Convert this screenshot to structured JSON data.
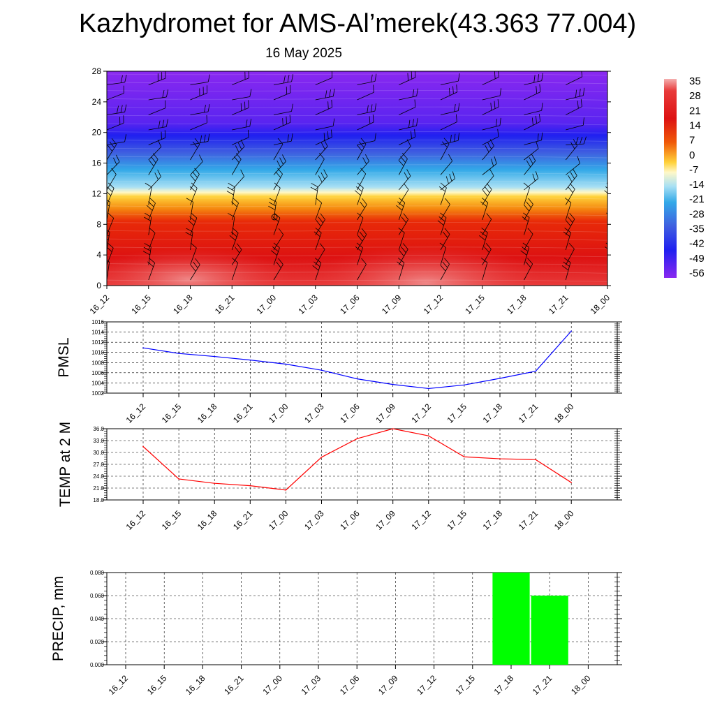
{
  "header": {
    "title": "Kazhydromet for AMS-Al’merek(43.363 77.004)",
    "subtitle": "16 May 2025"
  },
  "colors": {
    "pmsl_line": "#0000ff",
    "temp_line": "#ff0000",
    "precip_bar": "#00ff00"
  },
  "chart_data": [
    {
      "type": "heatmap",
      "title": "",
      "xlabel": "",
      "ylabel": "",
      "x_ticks": [
        "16_12",
        "16_15",
        "16_18",
        "16_21",
        "17_00",
        "17_03",
        "17_06",
        "17_09",
        "17_12",
        "17_15",
        "17_18",
        "17_21",
        "18_00"
      ],
      "y_ticks": [
        "0",
        "4",
        "8",
        "12",
        "16",
        "20",
        "24",
        "28"
      ],
      "ylim": [
        0,
        28
      ],
      "colorbar": {
        "labels": [
          "35",
          "28",
          "21",
          "14",
          "7",
          "0",
          "-7",
          "-14",
          "-21",
          "-28",
          "-35",
          "-42",
          "-49",
          "-56"
        ],
        "range": [
          -60,
          38
        ]
      },
      "overlay": "wind barbs"
    },
    {
      "type": "line",
      "ylabel": "PMSL",
      "categories": [
        "16_12",
        "16_15",
        "16_18",
        "16_21",
        "17_00",
        "17_03",
        "17_06",
        "17_09",
        "17_12",
        "17_15",
        "17_18",
        "17_21",
        "18_00"
      ],
      "values": [
        1010.9,
        1009.8,
        1009.2,
        1008.5,
        1007.7,
        1006.5,
        1004.8,
        1003.7,
        1002.9,
        1003.6,
        1004.9,
        1006.3,
        1014.2
      ],
      "ylim": [
        1002,
        1016
      ],
      "y_ticks": [
        "1002",
        "1004",
        "1006",
        "1008",
        "1010",
        "1012",
        "1014",
        "1016"
      ],
      "grid": true
    },
    {
      "type": "line",
      "ylabel": "TEMP at 2 M",
      "categories": [
        "16_12",
        "16_15",
        "16_18",
        "16_21",
        "17_00",
        "17_03",
        "17_06",
        "17_09",
        "17_12",
        "17_15",
        "17_18",
        "17_21",
        "18_00"
      ],
      "values": [
        31.5,
        23.3,
        22.2,
        21.6,
        20.5,
        28.8,
        33.5,
        36.0,
        34.2,
        28.9,
        28.4,
        28.2,
        22.4
      ],
      "ylim": [
        18,
        36
      ],
      "y_ticks": [
        "18.0",
        "21.0",
        "24.0",
        "27.0",
        "30.0",
        "33.0",
        "36.0"
      ],
      "grid": true
    },
    {
      "type": "bar",
      "ylabel": "PRECIP, mm",
      "categories": [
        "16_12",
        "16_15",
        "16_18",
        "16_21",
        "17_00",
        "17_03",
        "17_06",
        "17_09",
        "17_12",
        "17_15",
        "17_18",
        "17_21",
        "18_00"
      ],
      "values": [
        0,
        0,
        0,
        0,
        0,
        0,
        0,
        0,
        0,
        0,
        0.08,
        0.06,
        0
      ],
      "ylim": [
        0,
        0.08
      ],
      "y_ticks": [
        "0.000",
        "0.020",
        "0.040",
        "0.060",
        "0.080"
      ],
      "grid": true
    }
  ]
}
